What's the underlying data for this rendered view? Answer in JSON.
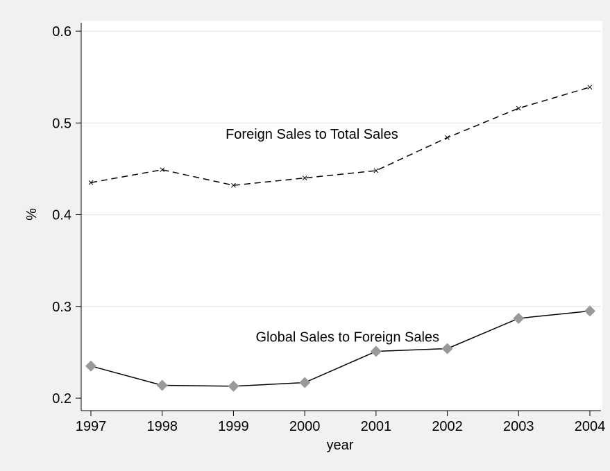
{
  "chart_data": {
    "type": "line",
    "title": "",
    "xlabel": "year",
    "ylabel": "%",
    "x": [
      1997,
      1998,
      1999,
      2000,
      2001,
      2002,
      2003,
      2004
    ],
    "xlim": [
      1997,
      2004
    ],
    "ylim": [
      0.2,
      0.6
    ],
    "yticks": [
      "0.2",
      "0.3",
      "0.4",
      "0.5",
      "0.6"
    ],
    "grid": true,
    "legend": "none",
    "series": [
      {
        "key": "foreign",
        "values": [
          0.435,
          0.449,
          0.432,
          0.44,
          0.448,
          0.484,
          0.516,
          0.539
        ],
        "style": "dashed",
        "marker": "x",
        "color": "#000000"
      },
      {
        "key": "global",
        "values": [
          0.235,
          0.214,
          0.213,
          0.217,
          0.251,
          0.254,
          0.287,
          0.295
        ],
        "style": "solid",
        "marker": "diamond",
        "color": "#000000",
        "marker_color": "#999999"
      }
    ],
    "annotations": [
      {
        "text": "Foreign Sales to Total Sales",
        "x": 2000.1,
        "y": 0.488
      },
      {
        "text": "Global Sales to Foreign Sales",
        "x": 2000.6,
        "y": 0.267
      }
    ]
  },
  "colors": {
    "background": "#f1f1f1",
    "plot_background": "#ffffff",
    "grid": "#e5e5e5",
    "axis": "#000000",
    "diamond_marker": "#999999"
  }
}
